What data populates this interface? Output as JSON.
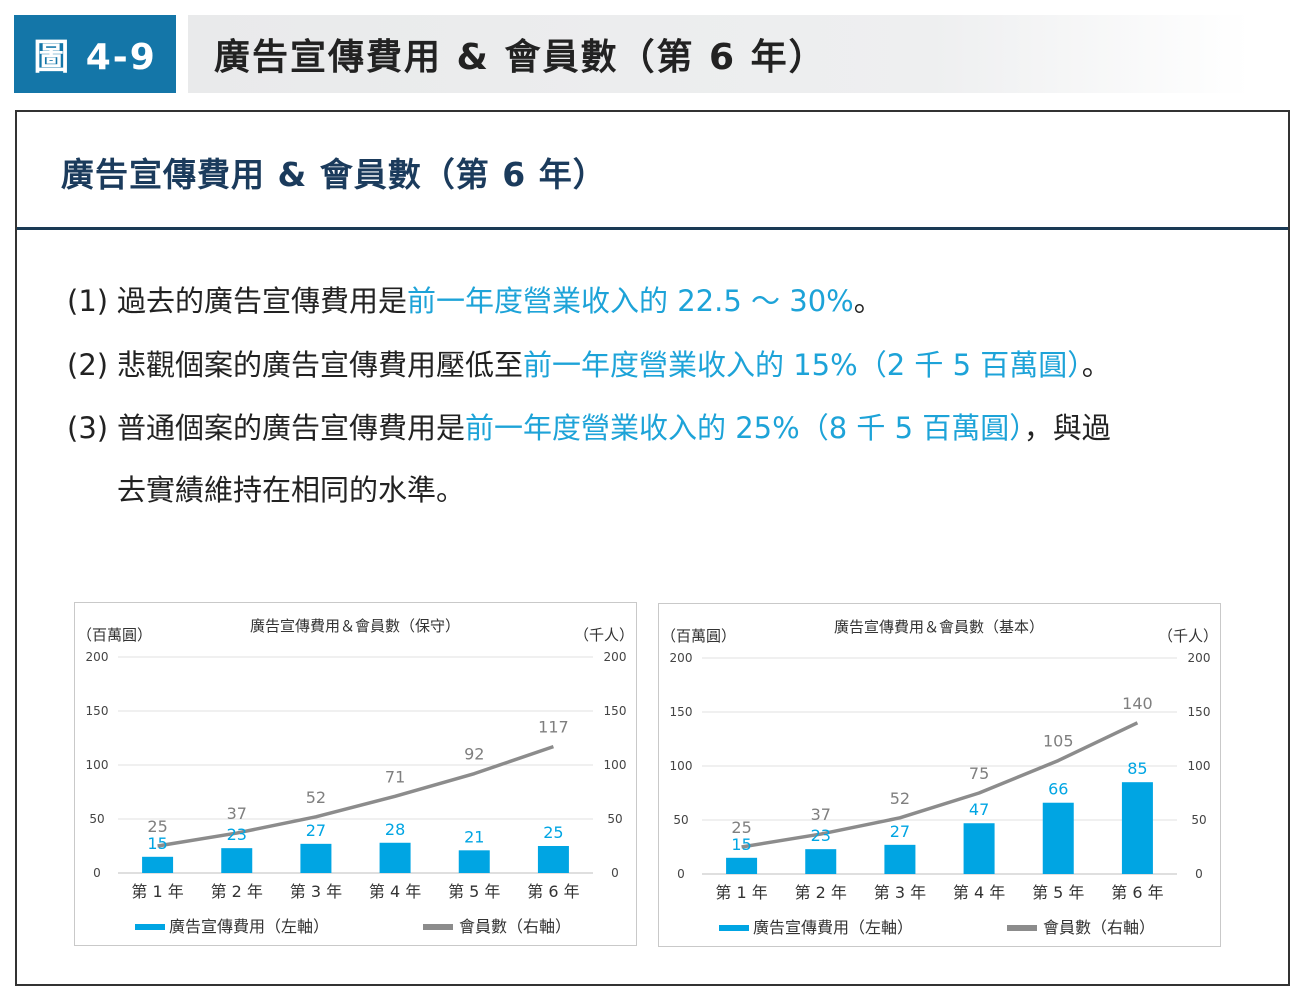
{
  "figure": {
    "label": "圖 4-9",
    "title": "廣告宣傳費用 & 會員數（第 6 年）"
  },
  "card": {
    "title": "廣告宣傳費用 & 會員數（第 6 年）",
    "lines": [
      {
        "num": "(1)",
        "prefix": "過去的廣告宣傳費用是",
        "highlight": "前一年度營業收入的 22.5 ～ 30%",
        "suffix": "。"
      },
      {
        "num": "(2)",
        "prefix": "悲觀個案的廣告宣傳費用壓低至",
        "highlight": "前一年度營業收入的 15%（2 千 5 百萬圓）",
        "suffix": "。"
      },
      {
        "num": "(3)",
        "prefix": "普通個案的廣告宣傳費用是",
        "highlight": "前一年度營業收入的 25%（8 千 5 百萬圓）",
        "suffix": "，與過"
      },
      {
        "num": "",
        "prefix": "去實績維持在相同的水準。",
        "highlight": "",
        "suffix": ""
      }
    ]
  },
  "colors": {
    "bar": "#00a5e3",
    "line": "#8c8c8c",
    "badge": "#1476a8",
    "highlight": "#1da3d8"
  },
  "chart_data": [
    {
      "type": "bar",
      "title": "廣告宣傳費用＆會員數（保守）",
      "left_unit": "（百萬圓）",
      "right_unit": "（千人）",
      "categories": [
        "第 1 年",
        "第 2 年",
        "第 3 年",
        "第 4 年",
        "第 5 年",
        "第 6 年"
      ],
      "ylim": [
        0,
        200
      ],
      "y_ticks": [
        "0",
        "50",
        "100",
        "150",
        "200"
      ],
      "series": [
        {
          "name": "廣告宣傳費用（左軸）",
          "kind": "bar",
          "axis": "left",
          "values": [
            15,
            23,
            27,
            28,
            21,
            25
          ]
        },
        {
          "name": "會員數（右軸）",
          "kind": "line",
          "axis": "right",
          "values": [
            25,
            37,
            52,
            71,
            92,
            117
          ]
        }
      ],
      "grid": true,
      "legend": "bottom"
    },
    {
      "type": "bar",
      "title": "廣告宣傳費用＆會員數（基本）",
      "left_unit": "（百萬圓）",
      "right_unit": "（千人）",
      "categories": [
        "第 1 年",
        "第 2 年",
        "第 3 年",
        "第 4 年",
        "第 5 年",
        "第 6 年"
      ],
      "ylim": [
        0,
        200
      ],
      "y_ticks": [
        "0",
        "50",
        "100",
        "150",
        "200"
      ],
      "series": [
        {
          "name": "廣告宣傳費用（左軸）",
          "kind": "bar",
          "axis": "left",
          "values": [
            15,
            23,
            27,
            47,
            66,
            85
          ]
        },
        {
          "name": "會員數（右軸）",
          "kind": "line",
          "axis": "right",
          "values": [
            25,
            37,
            52,
            75,
            105,
            140
          ]
        }
      ],
      "grid": true,
      "legend": "bottom"
    }
  ]
}
